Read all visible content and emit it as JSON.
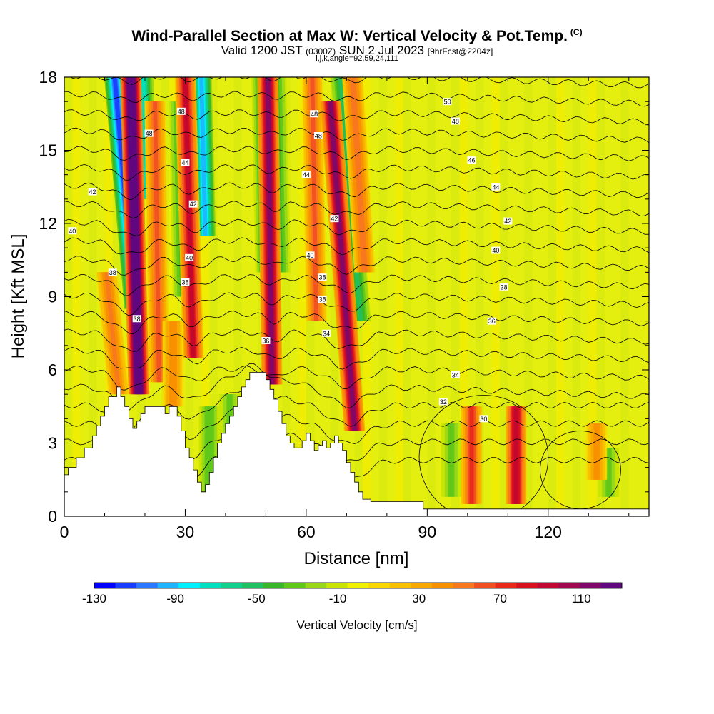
{
  "title": {
    "main": "Wind-Parallel Section at Max W: Vertical Velocity & Pot.Temp.",
    "copyright": "(C)",
    "valid_prefix": "Valid 1200 JST",
    "valid_utc": "(0300Z)",
    "valid_date": "SUN 2 Jul 2023",
    "forecast": "[9hrFcst@2204z]",
    "indices": "i,j,k,angle=92,59,24,111"
  },
  "chart_data": {
    "type": "heatmap",
    "xlabel": "Distance [nm]",
    "ylabel": "Height [Kft MSL]",
    "xlim": [
      0,
      145
    ],
    "ylim": [
      0,
      18
    ],
    "xticks": [
      0,
      30,
      60,
      90,
      120
    ],
    "yticks": [
      0,
      3,
      6,
      9,
      12,
      15,
      18
    ],
    "colorbar": {
      "label": "Vertical Velocity [cm/s]",
      "ticks": [
        -130,
        -90,
        -50,
        -10,
        30,
        70,
        110
      ],
      "range": [
        -130,
        130
      ],
      "colors": [
        "#0000ff",
        "#1a3cff",
        "#2a78ff",
        "#1eb4ff",
        "#00f0ff",
        "#00e0c0",
        "#10d08c",
        "#20c060",
        "#38b828",
        "#60c818",
        "#98d818",
        "#c8e400",
        "#f0f000",
        "#f8d800",
        "#f8c000",
        "#f8a800",
        "#f89000",
        "#f87820",
        "#f05020",
        "#e82818",
        "#d81020",
        "#c00830",
        "#a00850",
        "#800868",
        "#600880"
      ]
    },
    "contour_field": "Potential Temperature",
    "contour_labels": [
      {
        "value": "50",
        "x": 95,
        "y": 17.0
      },
      {
        "value": "48",
        "x": 29,
        "y": 16.6
      },
      {
        "value": "48",
        "x": 62,
        "y": 16.5
      },
      {
        "value": "48",
        "x": 97,
        "y": 16.2
      },
      {
        "value": "48",
        "x": 21,
        "y": 15.7
      },
      {
        "value": "48",
        "x": 63,
        "y": 15.6
      },
      {
        "value": "46",
        "x": 101,
        "y": 14.6
      },
      {
        "value": "44",
        "x": 30,
        "y": 14.5
      },
      {
        "value": "44",
        "x": 60,
        "y": 14.0
      },
      {
        "value": "44",
        "x": 107,
        "y": 13.5
      },
      {
        "value": "42",
        "x": 7,
        "y": 13.3
      },
      {
        "value": "42",
        "x": 32,
        "y": 12.8
      },
      {
        "value": "42",
        "x": 67,
        "y": 12.2
      },
      {
        "value": "42",
        "x": 110,
        "y": 12.1
      },
      {
        "value": "40",
        "x": 2,
        "y": 11.7
      },
      {
        "value": "40",
        "x": 107,
        "y": 10.9
      },
      {
        "value": "40",
        "x": 61,
        "y": 10.7
      },
      {
        "value": "40",
        "x": 31,
        "y": 10.6
      },
      {
        "value": "38",
        "x": 12,
        "y": 10.0
      },
      {
        "value": "38",
        "x": 30,
        "y": 9.6
      },
      {
        "value": "38",
        "x": 64,
        "y": 9.8
      },
      {
        "value": "38",
        "x": 109,
        "y": 9.4
      },
      {
        "value": "38",
        "x": 64,
        "y": 8.9
      },
      {
        "value": "38",
        "x": 18,
        "y": 8.1
      },
      {
        "value": "36",
        "x": 106,
        "y": 8.0
      },
      {
        "value": "36",
        "x": 50,
        "y": 7.2
      },
      {
        "value": "34",
        "x": 65,
        "y": 7.5
      },
      {
        "value": "34",
        "x": 97,
        "y": 5.8
      },
      {
        "value": "32",
        "x": 94,
        "y": 4.7
      },
      {
        "value": "30",
        "x": 104,
        "y": 4.0
      }
    ],
    "terrain_kft": [
      [
        0,
        1.7
      ],
      [
        1,
        1.7
      ],
      [
        1,
        2.0
      ],
      [
        3,
        2.0
      ],
      [
        3,
        2.4
      ],
      [
        5,
        2.4
      ],
      [
        5,
        2.8
      ],
      [
        7,
        2.8
      ],
      [
        7,
        3.3
      ],
      [
        8,
        3.3
      ],
      [
        8,
        3.7
      ],
      [
        9,
        3.7
      ],
      [
        9,
        4.1
      ],
      [
        10,
        4.1
      ],
      [
        10,
        4.5
      ],
      [
        11,
        4.5
      ],
      [
        11,
        4.9
      ],
      [
        13,
        4.9
      ],
      [
        13,
        5.3
      ],
      [
        14,
        5.3
      ],
      [
        14,
        4.9
      ],
      [
        15,
        4.9
      ],
      [
        15,
        4.5
      ],
      [
        16,
        4.5
      ],
      [
        16,
        4.0
      ],
      [
        17,
        4.0
      ],
      [
        17,
        3.6
      ],
      [
        18,
        3.6
      ],
      [
        18,
        3.9
      ],
      [
        19,
        3.9
      ],
      [
        19,
        4.2
      ],
      [
        20,
        4.2
      ],
      [
        20,
        4.5
      ],
      [
        25,
        4.5
      ],
      [
        25,
        4.2
      ],
      [
        26,
        4.2
      ],
      [
        26,
        4.5
      ],
      [
        28,
        4.5
      ],
      [
        28,
        4.1
      ],
      [
        29,
        4.1
      ],
      [
        29,
        3.5
      ],
      [
        30,
        3.5
      ],
      [
        30,
        2.8
      ],
      [
        31,
        2.8
      ],
      [
        31,
        2.4
      ],
      [
        32,
        2.4
      ],
      [
        32,
        1.9
      ],
      [
        33,
        1.9
      ],
      [
        33,
        1.4
      ],
      [
        34,
        1.4
      ],
      [
        34,
        1.0
      ],
      [
        35,
        1.0
      ],
      [
        35,
        1.3
      ],
      [
        36,
        1.3
      ],
      [
        36,
        1.8
      ],
      [
        37,
        1.8
      ],
      [
        37,
        2.4
      ],
      [
        38,
        2.4
      ],
      [
        38,
        3.0
      ],
      [
        39,
        3.0
      ],
      [
        39,
        3.4
      ],
      [
        40,
        3.4
      ],
      [
        40,
        3.8
      ],
      [
        41,
        3.8
      ],
      [
        41,
        4.1
      ],
      [
        42,
        4.1
      ],
      [
        42,
        4.5
      ],
      [
        43,
        4.5
      ],
      [
        43,
        4.9
      ],
      [
        44,
        4.9
      ],
      [
        44,
        5.3
      ],
      [
        45,
        5.3
      ],
      [
        45,
        5.6
      ],
      [
        46,
        5.6
      ],
      [
        46,
        5.9
      ],
      [
        50,
        5.9
      ],
      [
        50,
        5.6
      ],
      [
        51,
        5.6
      ],
      [
        51,
        5.2
      ],
      [
        52,
        5.2
      ],
      [
        52,
        4.8
      ],
      [
        53,
        4.8
      ],
      [
        53,
        4.3
      ],
      [
        54,
        4.3
      ],
      [
        54,
        3.8
      ],
      [
        55,
        3.8
      ],
      [
        55,
        3.3
      ],
      [
        56,
        3.3
      ],
      [
        56,
        3.0
      ],
      [
        57,
        3.0
      ],
      [
        57,
        2.8
      ],
      [
        59,
        2.8
      ],
      [
        59,
        3.1
      ],
      [
        60,
        3.1
      ],
      [
        60,
        3.4
      ],
      [
        61,
        3.4
      ],
      [
        61,
        3.1
      ],
      [
        62,
        3.1
      ],
      [
        62,
        2.7
      ],
      [
        63,
        2.7
      ],
      [
        63,
        2.9
      ],
      [
        64,
        2.9
      ],
      [
        64,
        3.1
      ],
      [
        65,
        3.1
      ],
      [
        65,
        2.8
      ],
      [
        66,
        2.8
      ],
      [
        66,
        3.0
      ],
      [
        67,
        3.0
      ],
      [
        67,
        3.3
      ],
      [
        68,
        3.3
      ],
      [
        68,
        3.0
      ],
      [
        69,
        3.0
      ],
      [
        69,
        2.7
      ],
      [
        70,
        2.7
      ],
      [
        70,
        2.2
      ],
      [
        71,
        2.2
      ],
      [
        71,
        1.8
      ],
      [
        72,
        1.8
      ],
      [
        72,
        1.4
      ],
      [
        73,
        1.4
      ],
      [
        73,
        1.0
      ],
      [
        74,
        1.0
      ],
      [
        74,
        0.7
      ],
      [
        76,
        0.7
      ],
      [
        76,
        0.6
      ],
      [
        79,
        0.6
      ],
      [
        79,
        0.6
      ],
      [
        89,
        0.6
      ],
      [
        89,
        0.3
      ],
      [
        145,
        0.3
      ]
    ],
    "updrafts": [
      {
        "x": 17.5,
        "top": 18,
        "bottom": 5.0,
        "w": 150,
        "tilt": -2
      },
      {
        "x": 31,
        "top": 18,
        "bottom": 6.5,
        "w": 90,
        "tilt": -2
      },
      {
        "x": 23,
        "top": 17,
        "bottom": 5.5,
        "w": 60,
        "tilt": -1
      },
      {
        "x": 51,
        "top": 18,
        "bottom": 5.4,
        "w": 110,
        "tilt": -1
      },
      {
        "x": 62,
        "top": 18,
        "bottom": 8,
        "w": 60,
        "tilt": -1
      },
      {
        "x": 69,
        "top": 17,
        "bottom": 3.5,
        "w": 110,
        "tilt": -6
      },
      {
        "x": 73,
        "top": 18,
        "bottom": 10,
        "w": 55,
        "tilt": -3
      },
      {
        "x": 12,
        "top": 10,
        "bottom": 5,
        "w": 50,
        "tilt": -3
      },
      {
        "x": 27,
        "top": 8,
        "bottom": 4.5,
        "w": 45,
        "tilt": 0
      },
      {
        "x": 112,
        "top": 4.5,
        "bottom": 0.5,
        "w": 95,
        "tilt": 0
      },
      {
        "x": 101,
        "top": 4.5,
        "bottom": 0.5,
        "w": 70,
        "tilt": 0
      },
      {
        "x": 132,
        "top": 3.8,
        "bottom": 1.5,
        "w": 40,
        "tilt": 0
      }
    ],
    "downdrafts": [
      {
        "x": 15,
        "top": 18,
        "bottom": 8.5,
        "w": -110,
        "tilt": -5
      },
      {
        "x": 20,
        "top": 18,
        "bottom": 13,
        "w": -70,
        "tilt": -1
      },
      {
        "x": 34.5,
        "top": 18,
        "bottom": 11.5,
        "w": -90,
        "tilt": -1
      },
      {
        "x": 29,
        "top": 17,
        "bottom": 9,
        "w": -40,
        "tilt": -1
      },
      {
        "x": 49.5,
        "top": 18,
        "bottom": 10,
        "w": -45,
        "tilt": -1
      },
      {
        "x": 53,
        "top": 18,
        "bottom": 10,
        "w": -40,
        "tilt": -1
      },
      {
        "x": 71,
        "top": 18,
        "bottom": 8,
        "w": -50,
        "tilt": -5
      },
      {
        "x": 36,
        "top": 4.5,
        "bottom": 1.0,
        "w": -35,
        "tilt": 0
      },
      {
        "x": 41,
        "top": 5.0,
        "bottom": 3.0,
        "w": -30,
        "tilt": 0
      },
      {
        "x": 96,
        "top": 3.8,
        "bottom": 0.8,
        "w": -30,
        "tilt": 0
      },
      {
        "x": 135,
        "top": 2.8,
        "bottom": 0.8,
        "w": -30,
        "tilt": 0
      }
    ]
  }
}
